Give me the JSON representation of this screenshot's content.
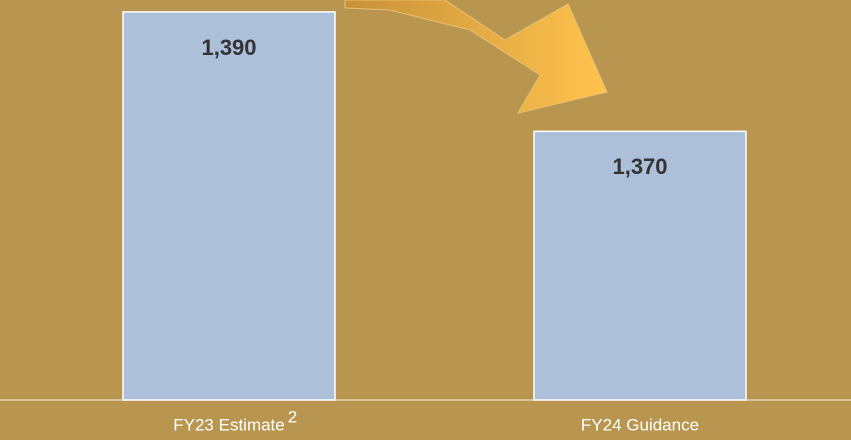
{
  "chart_data": {
    "type": "bar",
    "categories": [
      "FY23 Estimate",
      "FY24 Guidance"
    ],
    "category_superscripts": [
      "2",
      null
    ],
    "values": [
      1390,
      1370
    ],
    "value_labels": [
      "1,390",
      "1,370"
    ],
    "color": "#adc0d9",
    "ylim": [
      1325,
      1392
    ]
  }
}
